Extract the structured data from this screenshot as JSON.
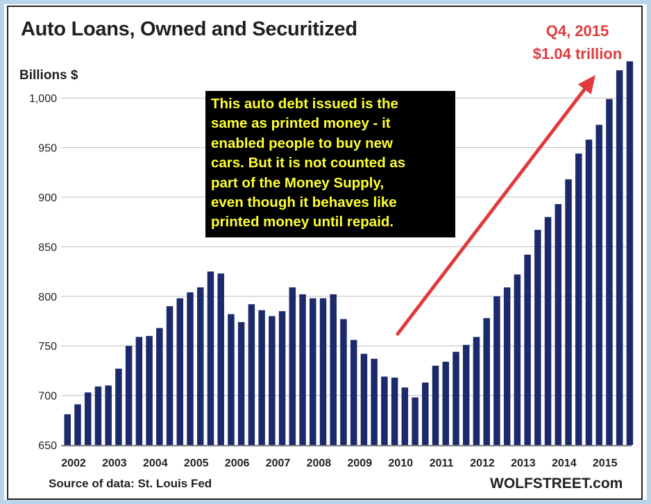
{
  "chart_data": {
    "type": "bar",
    "title": "Auto Loans, Owned and Securitized",
    "ylabel": "Billions $",
    "ylim": [
      650,
      1050
    ],
    "yticks": [
      650,
      700,
      750,
      800,
      850,
      900,
      950,
      1000
    ],
    "ytick_labels": [
      "650",
      "700",
      "750",
      "800",
      "850",
      "900",
      "950",
      "1,000"
    ],
    "xtick_labels": [
      "2002",
      "2003",
      "2004",
      "2005",
      "2006",
      "2007",
      "2008",
      "2009",
      "2010",
      "2011",
      "2012",
      "2013",
      "2014",
      "2015"
    ],
    "grid": true,
    "bar_color": "#1c2a6b",
    "values": [
      681,
      691,
      703,
      709,
      710,
      727,
      750,
      759,
      760,
      768,
      790,
      798,
      804,
      809,
      825,
      823,
      782,
      774,
      792,
      786,
      780,
      785,
      809,
      802,
      798,
      798,
      802,
      777,
      756,
      742,
      737,
      719,
      718,
      708,
      698,
      713,
      730,
      734,
      744,
      751,
      759,
      778,
      800,
      809,
      822,
      842,
      867,
      880,
      893,
      918,
      944,
      958,
      973,
      999,
      1028,
      1037
    ],
    "series": [
      {
        "values_ref": "values"
      }
    ]
  },
  "annotations": {
    "peak_line1": "Q4, 2015",
    "peak_line2": "$1.04 trillion",
    "box_lines": [
      "This auto debt issued is the",
      "same as printed money - it",
      "enabled people to buy new",
      "cars. But it is not counted as",
      "part of the Money Supply,",
      "even though it behaves like",
      "printed money until repaid."
    ],
    "arrow_color": "#e03a3e",
    "box_text_color": "#ffff33"
  },
  "footer": {
    "source": "Source of data: St. Louis Fed",
    "brand": "WOLFSTREET.com"
  }
}
